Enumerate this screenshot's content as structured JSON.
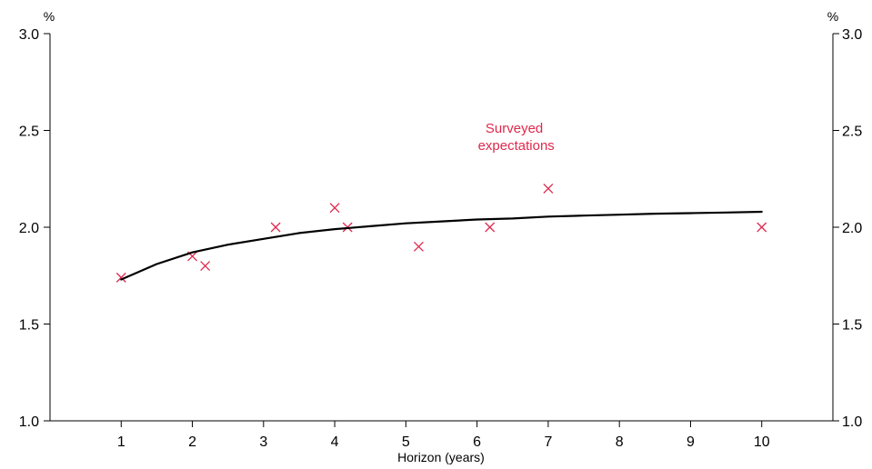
{
  "chart_data": {
    "type": "scatter",
    "xlabel": "Horizon (years)",
    "ylabel": "",
    "y_unit_left": "%",
    "y_unit_right": "%",
    "xlim": [
      0,
      11
    ],
    "ylim": [
      1.0,
      3.0
    ],
    "x_ticks": [
      1,
      2,
      3,
      4,
      5,
      6,
      7,
      8,
      9,
      10
    ],
    "y_ticks": [
      1.0,
      1.5,
      2.0,
      2.5,
      3.0
    ],
    "y_tick_labels": [
      "1.0",
      "1.5",
      "2.0",
      "2.5",
      "3.0"
    ],
    "grid": false,
    "annotation": {
      "lines": [
        "Surveyed",
        "expectations"
      ],
      "x": 6.55,
      "y": 2.45,
      "color": "#e0284c"
    },
    "series": [
      {
        "type": "scatter",
        "marker": "x",
        "color": "#e0284c",
        "points": [
          {
            "x": 1.0,
            "y": 1.74
          },
          {
            "x": 2.0,
            "y": 1.85
          },
          {
            "x": 2.18,
            "y": 1.8
          },
          {
            "x": 3.17,
            "y": 2.0
          },
          {
            "x": 4.0,
            "y": 2.1
          },
          {
            "x": 4.18,
            "y": 2.0
          },
          {
            "x": 5.18,
            "y": 1.9
          },
          {
            "x": 6.18,
            "y": 2.0
          },
          {
            "x": 7.0,
            "y": 2.2
          },
          {
            "x": 10.0,
            "y": 2.0
          }
        ]
      },
      {
        "type": "line",
        "color": "#000000",
        "points": [
          {
            "x": 1.0,
            "y": 1.73
          },
          {
            "x": 1.5,
            "y": 1.81
          },
          {
            "x": 2.0,
            "y": 1.87
          },
          {
            "x": 2.5,
            "y": 1.91
          },
          {
            "x": 3.0,
            "y": 1.94
          },
          {
            "x": 3.5,
            "y": 1.97
          },
          {
            "x": 4.0,
            "y": 1.99
          },
          {
            "x": 4.5,
            "y": 2.005
          },
          {
            "x": 5.0,
            "y": 2.02
          },
          {
            "x": 5.5,
            "y": 2.03
          },
          {
            "x": 6.0,
            "y": 2.04
          },
          {
            "x": 6.5,
            "y": 2.045
          },
          {
            "x": 7.0,
            "y": 2.055
          },
          {
            "x": 7.5,
            "y": 2.06
          },
          {
            "x": 8.0,
            "y": 2.065
          },
          {
            "x": 8.5,
            "y": 2.07
          },
          {
            "x": 9.0,
            "y": 2.073
          },
          {
            "x": 9.5,
            "y": 2.076
          },
          {
            "x": 10.0,
            "y": 2.08
          }
        ]
      }
    ]
  }
}
